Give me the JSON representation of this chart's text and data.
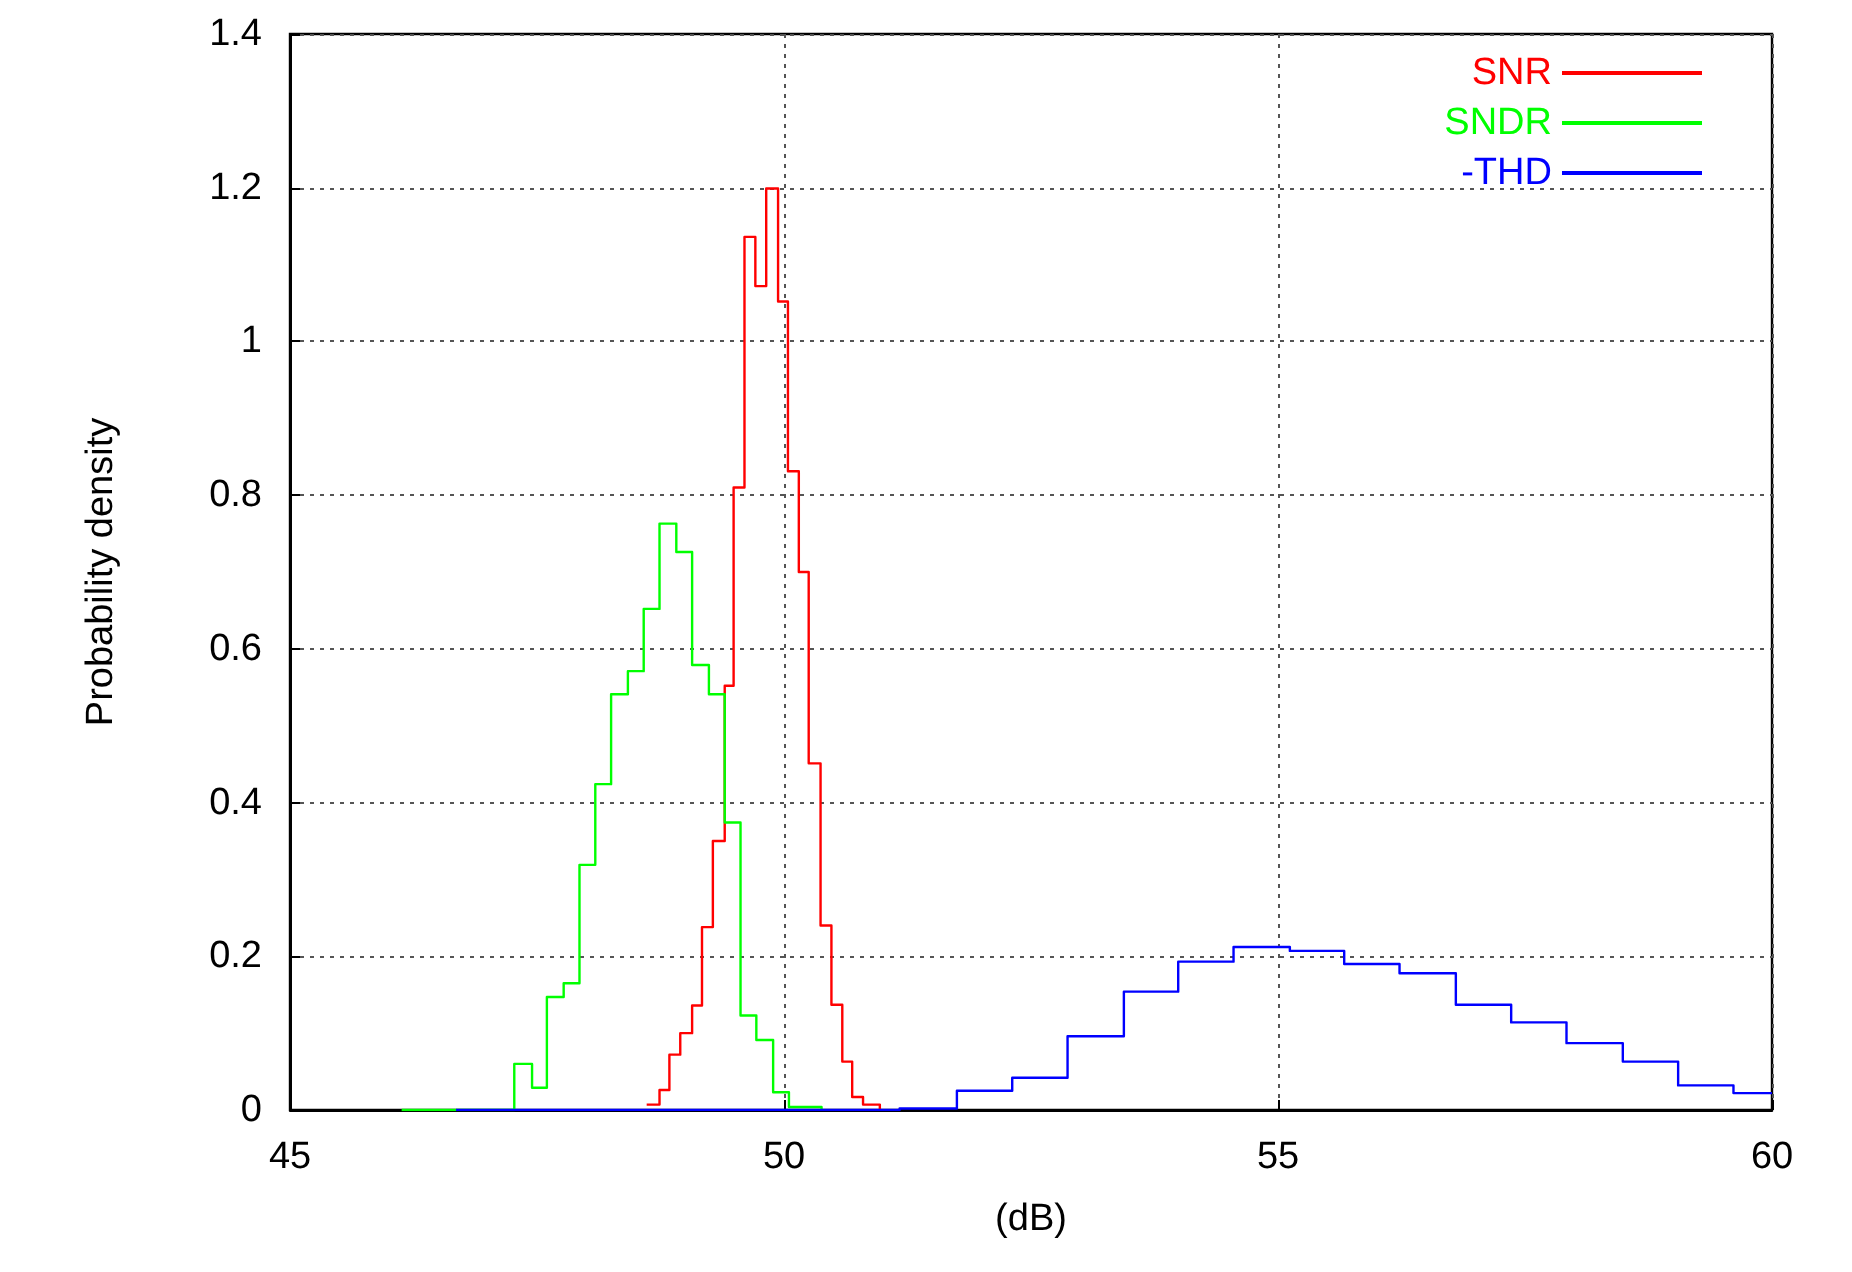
{
  "chart_data": {
    "type": "step",
    "xlabel": "(dB)",
    "ylabel": "Probability density",
    "xlim": [
      45,
      60
    ],
    "xticks": [
      45,
      50,
      55,
      60
    ],
    "ylim": [
      0,
      1.4
    ],
    "yticks": [
      0,
      0.2,
      0.4,
      0.6,
      0.8,
      1,
      1.2,
      1.4
    ],
    "grid": true,
    "legend": "top right",
    "marker": "none",
    "series": [
      {
        "name": "SNR",
        "color": "#ff0000",
        "x": [
          48.61,
          48.74,
          48.84,
          48.95,
          49.07,
          49.17,
          49.28,
          49.4,
          49.49,
          49.6,
          49.71,
          49.82,
          49.94,
          50.04,
          50.15,
          50.25,
          50.37,
          50.48,
          50.59,
          50.69,
          50.8,
          50.97
        ],
        "values": [
          0.007,
          0.026,
          0.072,
          0.1,
          0.136,
          0.238,
          0.35,
          0.552,
          0.81,
          1.136,
          1.072,
          1.199,
          1.052,
          0.831,
          0.7,
          0.451,
          0.24,
          0.137,
          0.063,
          0.017,
          0.007,
          0
        ]
      },
      {
        "name": "SNDR",
        "color": "#00ff00",
        "x": [
          46.13,
          47.27,
          47.45,
          47.6,
          47.77,
          47.93,
          48.09,
          48.25,
          48.42,
          48.58,
          48.74,
          48.91,
          49.07,
          49.24,
          49.4,
          49.56,
          49.72,
          49.89,
          50.05,
          50.22,
          50.38
        ],
        "values": [
          0,
          0.06,
          0.029,
          0.147,
          0.165,
          0.319,
          0.424,
          0.541,
          0.571,
          0.652,
          0.763,
          0.726,
          0.579,
          0.541,
          0.374,
          0.123,
          0.091,
          0.023,
          0.004,
          0.004,
          0
        ]
      },
      {
        "name": "-THD",
        "color": "#0000ff",
        "x": [
          46.68,
          51.17,
          51.75,
          52.31,
          52.87,
          53.44,
          53.99,
          54.55,
          55.12,
          55.67,
          56.23,
          56.8,
          57.36,
          57.92,
          58.49,
          59.05,
          59.61,
          60
        ],
        "values": [
          0,
          0.002,
          0.025,
          0.042,
          0.096,
          0.154,
          0.193,
          0.212,
          0.207,
          0.19,
          0.178,
          0.137,
          0.114,
          0.087,
          0.063,
          0.032,
          0.022,
          0.022
        ]
      }
    ]
  }
}
